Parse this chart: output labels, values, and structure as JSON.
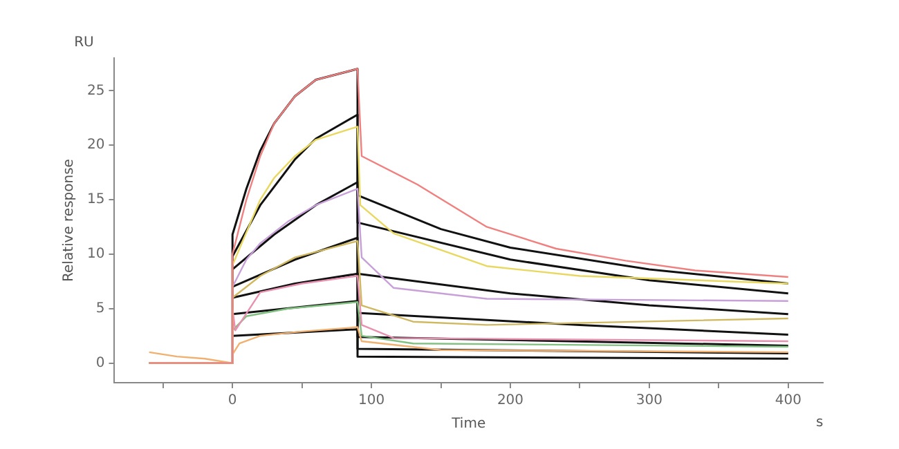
{
  "chart_data": {
    "type": "line",
    "xlabel": "Time",
    "ylabel": "Relative response",
    "annotations": [
      "RU",
      "s"
    ],
    "xlim": [
      -85,
      425
    ],
    "ylim": [
      -1.8,
      28
    ],
    "xticks": [
      {
        "value": -50,
        "label": null
      },
      0,
      {
        "value": 50,
        "label": null
      },
      100,
      {
        "value": 150,
        "label": null
      },
      200,
      {
        "value": 250,
        "label": null
      },
      300,
      {
        "value": 350,
        "label": null
      },
      400
    ],
    "yticks": [
      0,
      5,
      10,
      15,
      20,
      25
    ],
    "grid": false,
    "legend": false,
    "marker": "none",
    "line_style": "solid",
    "series": [
      {
        "color": "#f08080",
        "x": [
          -60,
          0,
          0,
          10,
          20,
          30,
          45,
          60,
          90,
          93,
          133,
          183,
          233,
          283,
          333,
          400
        ],
        "values": [
          0,
          0,
          10,
          15,
          19,
          22,
          24.5,
          26,
          27,
          19,
          16.4,
          12.5,
          10.5,
          9.4,
          8.5,
          7.9
        ]
      },
      {
        "color": "#e8d860",
        "x": [
          -60,
          0,
          0,
          10,
          20,
          30,
          45,
          60,
          90,
          92,
          116,
          183,
          250,
          400
        ],
        "values": [
          0,
          0,
          9,
          12,
          15,
          17,
          19,
          20.5,
          21.7,
          14.5,
          11.9,
          8.9,
          8,
          7.3
        ]
      },
      {
        "color": "#c8a0d8",
        "x": [
          -60,
          0,
          0,
          10,
          20,
          40,
          60,
          90,
          93,
          116,
          183,
          400
        ],
        "values": [
          0,
          0,
          7,
          9.5,
          11,
          13,
          14.5,
          16,
          9.7,
          6.9,
          5.9,
          5.7
        ]
      },
      {
        "color": "#d0b860",
        "x": [
          -60,
          0,
          0,
          20,
          45,
          90,
          93,
          130,
          183,
          400
        ],
        "values": [
          0,
          0,
          6,
          8,
          9.7,
          11.2,
          5.3,
          3.8,
          3.5,
          4.1
        ]
      },
      {
        "color": "#e890b0",
        "x": [
          -60,
          0,
          0,
          2,
          20,
          50,
          90,
          93,
          116,
          400
        ],
        "values": [
          0,
          0,
          5,
          3,
          6.5,
          7.3,
          8,
          3.5,
          2.3,
          2
        ]
      },
      {
        "color": "#80c080",
        "x": [
          -60,
          0,
          0,
          10,
          40,
          90,
          93,
          130,
          400
        ],
        "values": [
          0,
          0,
          3,
          4.3,
          5,
          5.6,
          2.5,
          1.8,
          1.5
        ]
      },
      {
        "color": "#f0b070",
        "x": [
          -60,
          -40,
          -20,
          0,
          0,
          5,
          20,
          50,
          90,
          93,
          150,
          400
        ],
        "values": [
          1,
          0.6,
          0.4,
          0,
          0.8,
          1.8,
          2.5,
          2.9,
          3.3,
          2,
          1.2,
          1
        ]
      },
      {
        "color": "#111111",
        "x": [
          -60,
          0,
          0,
          10,
          20,
          30,
          45,
          60,
          90,
          90,
          150,
          200,
          300,
          400
        ],
        "values": [
          0,
          0,
          11.8,
          16,
          19.5,
          22,
          24.5,
          26,
          27,
          15.4,
          12.3,
          10.6,
          8.6,
          7.3
        ]
      },
      {
        "color": "#111111",
        "x": [
          0,
          20,
          45,
          60,
          90,
          90,
          200,
          300,
          400
        ],
        "values": [
          9.8,
          14.5,
          18.7,
          20.6,
          22.8,
          12.9,
          9.5,
          7.6,
          6.4
        ]
      },
      {
        "color": "#111111",
        "x": [
          0,
          30,
          60,
          90,
          90,
          200,
          300,
          400
        ],
        "values": [
          8.6,
          11.8,
          14.5,
          16.6,
          8.2,
          6.4,
          5.3,
          4.5
        ]
      },
      {
        "color": "#111111",
        "x": [
          0,
          45,
          90,
          90,
          250,
          400
        ],
        "values": [
          7,
          9.5,
          11.5,
          4.6,
          3.5,
          2.6
        ]
      },
      {
        "color": "#111111",
        "x": [
          0,
          45,
          90,
          90,
          400
        ],
        "values": [
          6,
          7.3,
          8.2,
          2.4,
          1.6
        ]
      },
      {
        "color": "#111111",
        "x": [
          0,
          90,
          90,
          400
        ],
        "values": [
          4.5,
          5.7,
          1.3,
          0.9
        ]
      },
      {
        "color": "#111111",
        "x": [
          0,
          90,
          90,
          400
        ],
        "values": [
          2.5,
          3.1,
          0.6,
          0.4
        ]
      }
    ]
  }
}
